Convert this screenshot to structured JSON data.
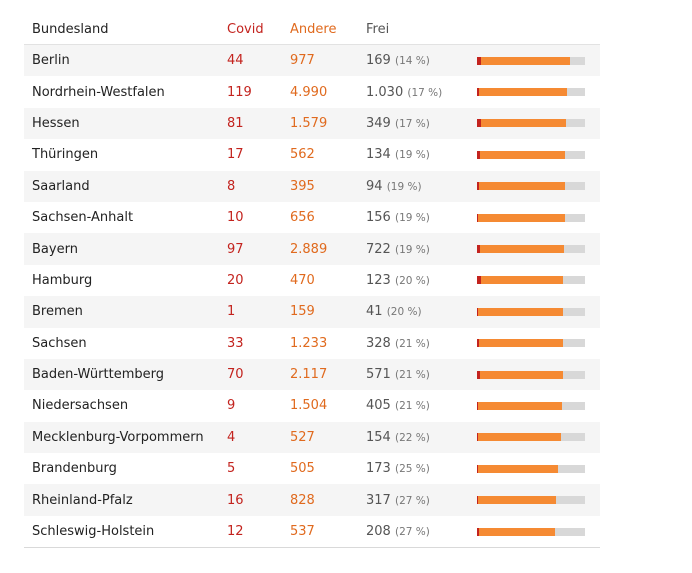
{
  "colors": {
    "covid": "#c3231e",
    "andere": "#f58a33",
    "frei": "#d8d8d8"
  },
  "table": {
    "headers": {
      "land": "Bundesland",
      "covid": "Covid",
      "andere": "Andere",
      "frei": "Frei"
    },
    "rows": [
      {
        "land": "Berlin",
        "covid": "44",
        "andere": "977",
        "frei": "169",
        "pct": "(14 %)"
      },
      {
        "land": "Nordrhein-Westfalen",
        "covid": "119",
        "andere": "4.990",
        "frei": "1.030",
        "pct": "(17 %)"
      },
      {
        "land": "Hessen",
        "covid": "81",
        "andere": "1.579",
        "frei": "349",
        "pct": "(17 %)"
      },
      {
        "land": "Thüringen",
        "covid": "17",
        "andere": "562",
        "frei": "134",
        "pct": "(19 %)"
      },
      {
        "land": "Saarland",
        "covid": "8",
        "andere": "395",
        "frei": "94",
        "pct": "(19 %)"
      },
      {
        "land": "Sachsen-Anhalt",
        "covid": "10",
        "andere": "656",
        "frei": "156",
        "pct": "(19 %)"
      },
      {
        "land": "Bayern",
        "covid": "97",
        "andere": "2.889",
        "frei": "722",
        "pct": "(19 %)"
      },
      {
        "land": "Hamburg",
        "covid": "20",
        "andere": "470",
        "frei": "123",
        "pct": "(20 %)"
      },
      {
        "land": "Bremen",
        "covid": "1",
        "andere": "159",
        "frei": "41",
        "pct": "(20 %)"
      },
      {
        "land": "Sachsen",
        "covid": "33",
        "andere": "1.233",
        "frei": "328",
        "pct": "(21 %)"
      },
      {
        "land": "Baden-Württemberg",
        "covid": "70",
        "andere": "2.117",
        "frei": "571",
        "pct": "(21 %)"
      },
      {
        "land": "Niedersachsen",
        "covid": "9",
        "andere": "1.504",
        "frei": "405",
        "pct": "(21 %)"
      },
      {
        "land": "Mecklenburg-Vorpommern",
        "covid": "4",
        "andere": "527",
        "frei": "154",
        "pct": "(22 %)"
      },
      {
        "land": "Brandenburg",
        "covid": "5",
        "andere": "505",
        "frei": "173",
        "pct": "(25 %)"
      },
      {
        "land": "Rheinland-Pfalz",
        "covid": "16",
        "andere": "828",
        "frei": "317",
        "pct": "(27 %)"
      },
      {
        "land": "Schleswig-Holstein",
        "covid": "12",
        "andere": "537",
        "frei": "208",
        "pct": "(27 %)"
      }
    ]
  },
  "chart_data": {
    "type": "bar",
    "stacked": true,
    "orientation": "horizontal",
    "categories": [
      "Berlin",
      "Nordrhein-Westfalen",
      "Hessen",
      "Thüringen",
      "Saarland",
      "Sachsen-Anhalt",
      "Bayern",
      "Hamburg",
      "Bremen",
      "Sachsen",
      "Baden-Württemberg",
      "Niedersachsen",
      "Mecklenburg-Vorpommern",
      "Brandenburg",
      "Rheinland-Pfalz",
      "Schleswig-Holstein"
    ],
    "series": [
      {
        "name": "Covid",
        "values": [
          44,
          119,
          81,
          17,
          8,
          10,
          97,
          20,
          1,
          33,
          70,
          9,
          4,
          5,
          16,
          12
        ]
      },
      {
        "name": "Andere",
        "values": [
          977,
          4990,
          1579,
          562,
          395,
          656,
          2889,
          470,
          159,
          1233,
          2117,
          1504,
          527,
          505,
          828,
          537
        ]
      },
      {
        "name": "Frei",
        "values": [
          169,
          1030,
          349,
          134,
          94,
          156,
          722,
          123,
          41,
          328,
          571,
          405,
          154,
          173,
          317,
          208
        ]
      }
    ]
  }
}
